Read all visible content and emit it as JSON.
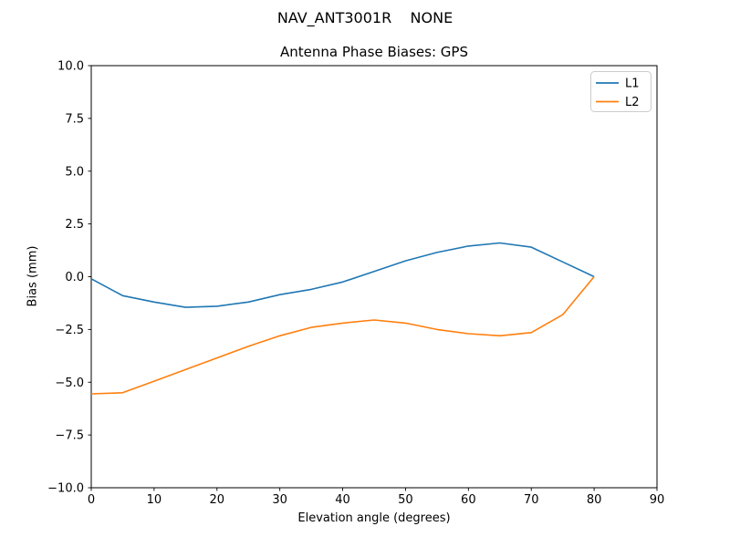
{
  "figure": {
    "suptitle": "NAV_ANT3001R    NONE"
  },
  "chart_data": {
    "type": "line",
    "title": "Antenna Phase Biases: GPS",
    "xlabel": "Elevation angle (degrees)",
    "ylabel": "Bias (mm)",
    "xlim": [
      0,
      90
    ],
    "ylim": [
      -10,
      10
    ],
    "grid": false,
    "x_ticks": {
      "values": [
        0,
        10,
        20,
        30,
        40,
        50,
        60,
        70,
        80,
        90
      ],
      "labels": [
        "0",
        "10",
        "20",
        "30",
        "40",
        "50",
        "60",
        "70",
        "80",
        "90"
      ]
    },
    "y_ticks": {
      "values": [
        -10,
        -7.5,
        -5,
        -2.5,
        0,
        2.5,
        5,
        7.5,
        10
      ],
      "labels": [
        "−10.0",
        "−7.5",
        "−5.0",
        "−2.5",
        "0.0",
        "2.5",
        "5.0",
        "7.5",
        "10.0"
      ]
    },
    "x": [
      0,
      5,
      10,
      15,
      20,
      25,
      30,
      35,
      40,
      45,
      50,
      55,
      60,
      65,
      70,
      75,
      80
    ],
    "series": [
      {
        "name": "L1",
        "color": "#1f77b4",
        "values": [
          -0.1,
          -0.9,
          -1.2,
          -1.45,
          -1.4,
          -1.2,
          -0.85,
          -0.6,
          -0.25,
          0.25,
          0.75,
          1.15,
          1.45,
          1.6,
          1.4,
          0.7,
          0.0
        ]
      },
      {
        "name": "L2",
        "color": "#ff7f0e",
        "values": [
          -5.55,
          -5.5,
          -4.95,
          -4.4,
          -3.85,
          -3.3,
          -2.8,
          -2.4,
          -2.2,
          -2.05,
          -2.2,
          -2.5,
          -2.7,
          -2.8,
          -2.65,
          -1.8,
          0.0
        ]
      }
    ],
    "legend": {
      "position": "upper right",
      "entries": [
        "L1",
        "L2"
      ],
      "edge_color": "#cccccc"
    },
    "spine_color": "#000000",
    "background": "#ffffff"
  }
}
